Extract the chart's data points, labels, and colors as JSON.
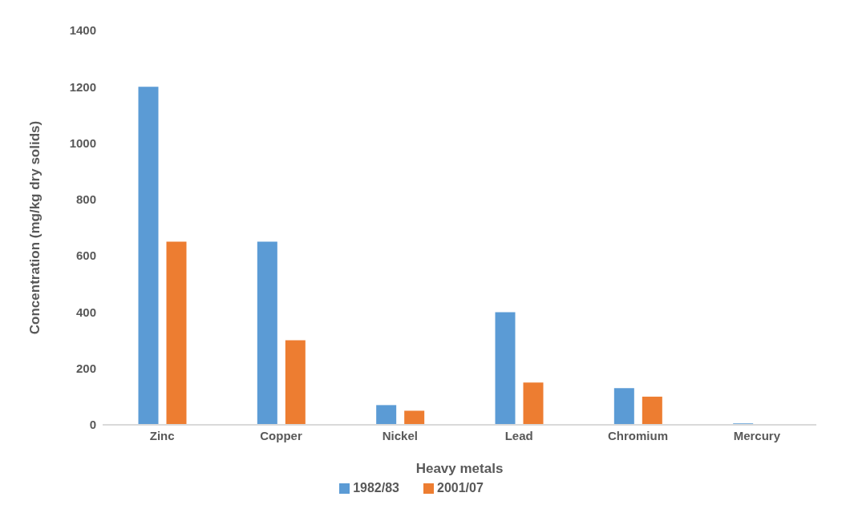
{
  "chart_data": {
    "type": "bar",
    "xlabel": "Heavy metals",
    "ylabel": "Concentration (mg/kg dry solids)",
    "categories": [
      "Zinc",
      "Copper",
      "Nickel",
      "Lead",
      "Chromium",
      "Mercury"
    ],
    "series": [
      {
        "name": "1982/83",
        "color": "#5b9bd5",
        "values": [
          1200,
          650,
          70,
          400,
          130,
          5
        ]
      },
      {
        "name": "2001/07",
        "color": "#ed7d31",
        "values": [
          650,
          300,
          50,
          150,
          100,
          null
        ]
      }
    ],
    "ylim": [
      0,
      1400
    ],
    "yticks": [
      0,
      200,
      400,
      600,
      800,
      1000,
      1200,
      1400
    ],
    "grid": false,
    "legend": "bottom"
  }
}
